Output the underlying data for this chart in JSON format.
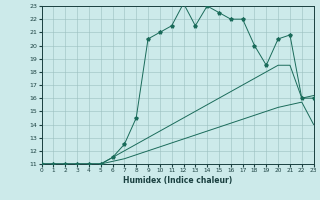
{
  "title": "",
  "xlabel": "Humidex (Indice chaleur)",
  "bg_color": "#cceaea",
  "line_color": "#1a6b5a",
  "xmin": 0,
  "xmax": 23,
  "ymin": 11,
  "ymax": 23,
  "yticks": [
    11,
    12,
    13,
    14,
    15,
    16,
    17,
    18,
    19,
    20,
    21,
    22,
    23
  ],
  "xticks": [
    0,
    1,
    2,
    3,
    4,
    5,
    6,
    7,
    8,
    9,
    10,
    11,
    12,
    13,
    14,
    15,
    16,
    17,
    18,
    19,
    20,
    21,
    22,
    23
  ],
  "curve_top_x": [
    0,
    1,
    2,
    3,
    4,
    5,
    6,
    7,
    8,
    9,
    10,
    11,
    12,
    13,
    14,
    15,
    16,
    17,
    18,
    19,
    20,
    21,
    22,
    23
  ],
  "curve_top_y": [
    11.0,
    11.0,
    11.0,
    11.0,
    11.0,
    11.0,
    11.5,
    12.5,
    14.5,
    20.5,
    21.0,
    21.5,
    23.2,
    21.5,
    23.0,
    22.5,
    22.0,
    22.0,
    20.0,
    18.5,
    20.5,
    20.8,
    16.0,
    16.0
  ],
  "curve_mid_x": [
    0,
    1,
    2,
    3,
    4,
    5,
    6,
    7,
    8,
    9,
    10,
    11,
    12,
    13,
    14,
    15,
    16,
    17,
    18,
    19,
    20,
    21,
    22,
    23
  ],
  "curve_mid_y": [
    11.0,
    11.0,
    11.0,
    11.0,
    11.0,
    11.0,
    11.5,
    12.0,
    12.5,
    13.0,
    13.5,
    14.0,
    14.5,
    15.0,
    15.5,
    16.0,
    16.5,
    17.0,
    17.5,
    18.0,
    18.5,
    18.5,
    16.0,
    16.2
  ],
  "curve_bot_x": [
    0,
    1,
    2,
    3,
    4,
    5,
    6,
    7,
    8,
    9,
    10,
    11,
    12,
    13,
    14,
    15,
    16,
    17,
    18,
    19,
    20,
    21,
    22,
    23
  ],
  "curve_bot_y": [
    11.0,
    11.0,
    11.0,
    11.0,
    11.0,
    11.0,
    11.2,
    11.4,
    11.7,
    12.0,
    12.3,
    12.6,
    12.9,
    13.2,
    13.5,
    13.8,
    14.1,
    14.4,
    14.7,
    15.0,
    15.3,
    15.5,
    15.7,
    14.0
  ],
  "figwidth": 3.2,
  "figheight": 2.0,
  "dpi": 100
}
